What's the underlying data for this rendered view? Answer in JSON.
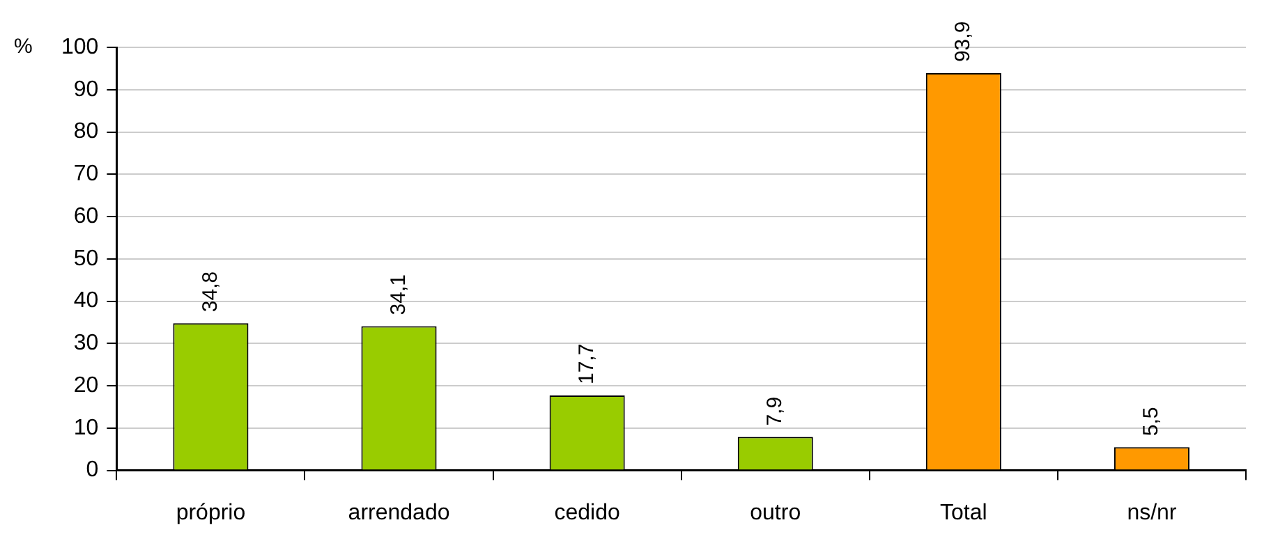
{
  "chart_data": {
    "type": "bar",
    "ylabel": "%",
    "categories": [
      "próprio",
      "arrendado",
      "cedido",
      "outro",
      "Total",
      "ns/nr"
    ],
    "values": [
      34.8,
      34.1,
      17.7,
      7.9,
      93.9,
      5.5
    ],
    "colors": [
      "#99cc00",
      "#99cc00",
      "#99cc00",
      "#99cc00",
      "#ff9900",
      "#ff9900"
    ],
    "value_labels": [
      "34,8",
      "34,1",
      "17,7",
      "7,9",
      "93,9",
      "5,5"
    ],
    "ylim": [
      0,
      100
    ],
    "yticks": [
      0,
      10,
      20,
      30,
      40,
      50,
      60,
      70,
      80,
      90,
      100
    ],
    "grid": "y",
    "legend": false
  }
}
